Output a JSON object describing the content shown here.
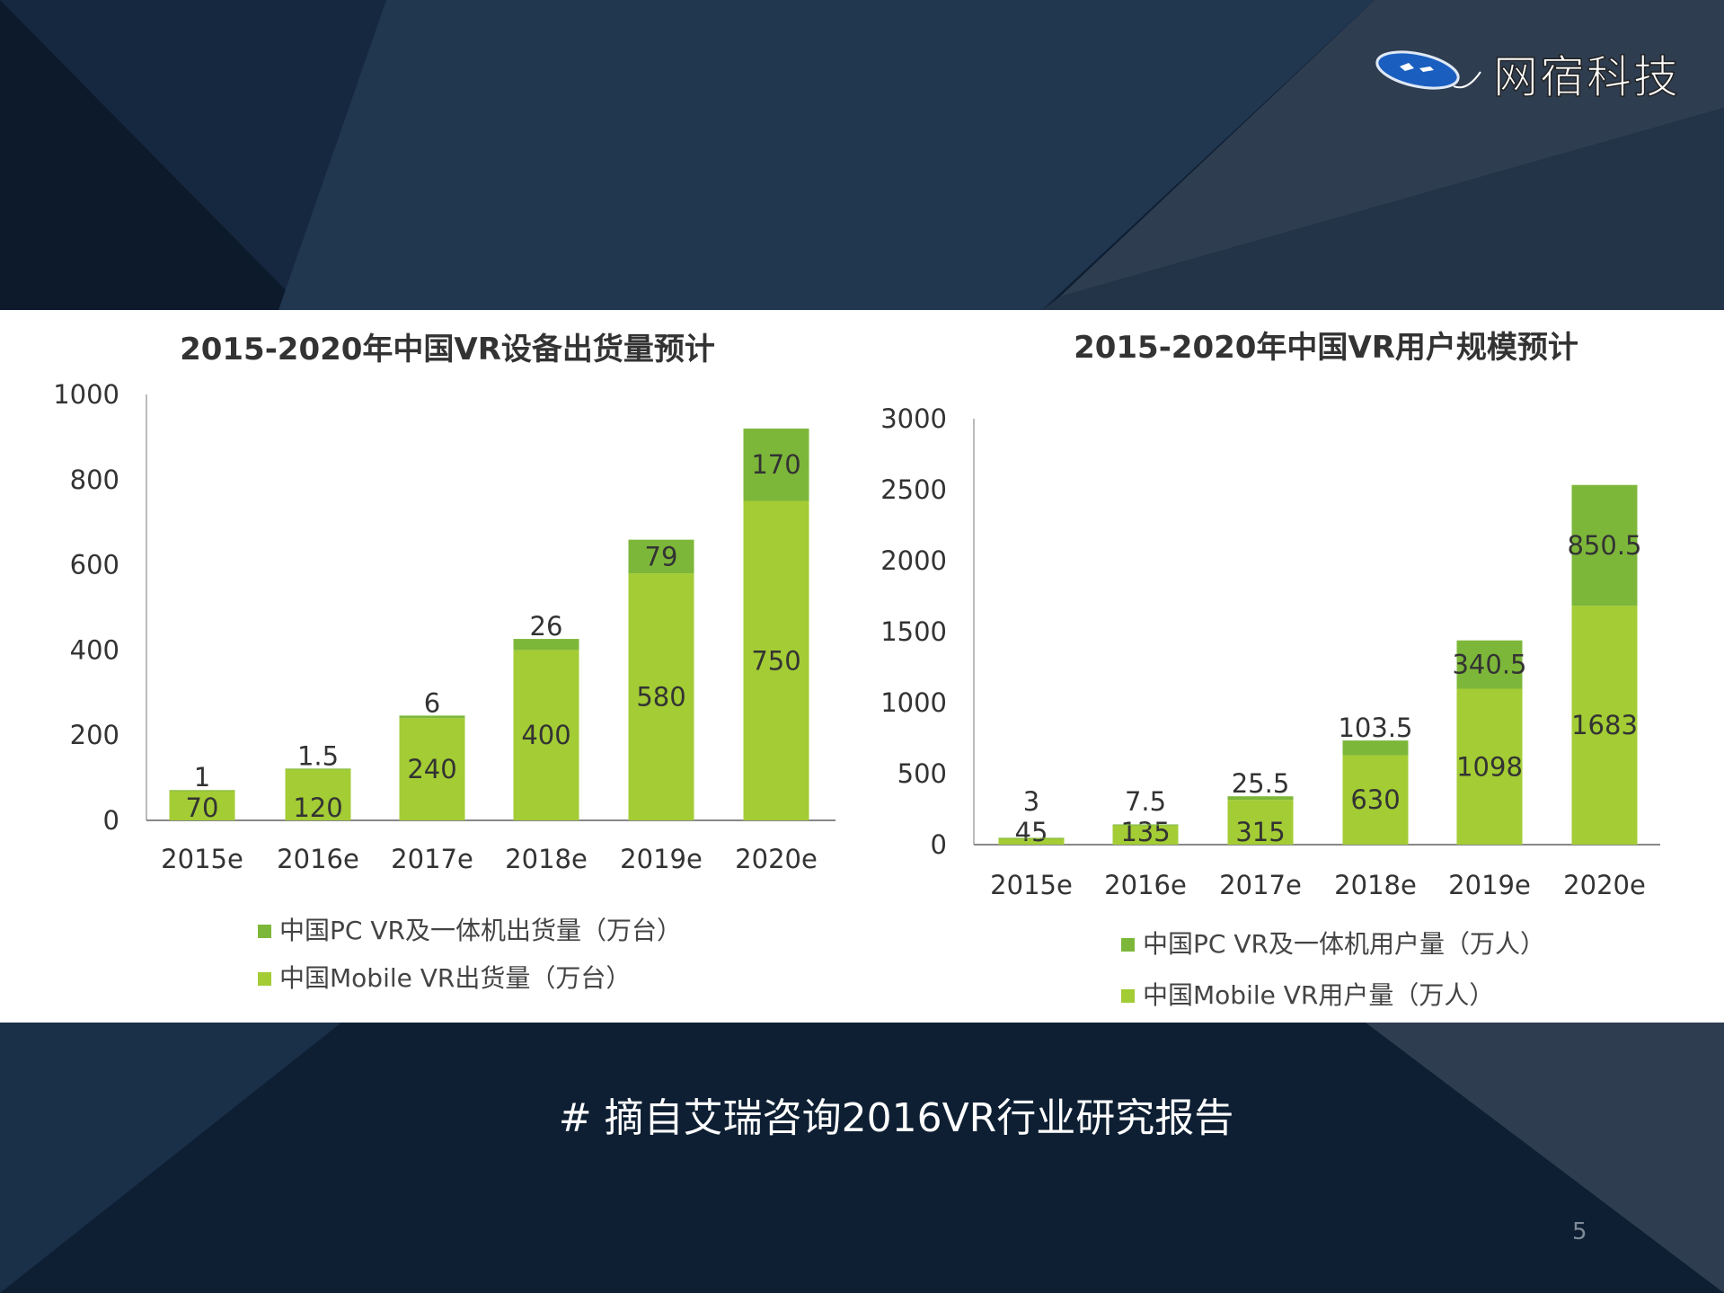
{
  "logo": {
    "text": "网宿科技"
  },
  "footer_note": "# 摘自艾瑞咨询2016VR行业研究报告",
  "page_number": "5",
  "colors": {
    "pc": "#7db73a",
    "mobile": "#a3cc35",
    "background": "#0e1f33"
  },
  "chart_data": [
    {
      "type": "bar",
      "stacked": true,
      "title": "2015-2020年中国VR设备出货量预计",
      "categories": [
        "2015e",
        "2016e",
        "2017e",
        "2018e",
        "2019e",
        "2020e"
      ],
      "ylim": [
        0,
        1000
      ],
      "yticks": [
        "0",
        "200",
        "400",
        "600",
        "800",
        "1000"
      ],
      "grid": false,
      "legend_position": "bottom",
      "series": [
        {
          "name": "中国Mobile VR出货量（万台）",
          "values": [
            70,
            120,
            240,
            400,
            580,
            750
          ],
          "labels": [
            "70",
            "120",
            "240",
            "400",
            "580",
            "750"
          ]
        },
        {
          "name": "中国PC VR及一体机出货量（万台）",
          "values": [
            1,
            1.5,
            6,
            26,
            79,
            170
          ],
          "labels": [
            "1",
            "1.5",
            "6",
            "26",
            "79",
            "170"
          ]
        }
      ]
    },
    {
      "type": "bar",
      "stacked": true,
      "title": "2015-2020年中国VR用户规模预计",
      "categories": [
        "2015e",
        "2016e",
        "2017e",
        "2018e",
        "2019e",
        "2020e"
      ],
      "ylim": [
        0,
        3000
      ],
      "yticks": [
        "0",
        "500",
        "1000",
        "1500",
        "2000",
        "2500",
        "3000"
      ],
      "grid": false,
      "legend_position": "bottom",
      "series": [
        {
          "name": "中国Mobile VR用户量（万人）",
          "values": [
            45,
            135,
            315,
            630,
            1098,
            1683
          ],
          "labels": [
            "45",
            "135",
            "315",
            "630",
            "1098",
            "1683"
          ]
        },
        {
          "name": "中国PC VR及一体机用户量（万人）",
          "values": [
            3,
            7.5,
            25.5,
            103.5,
            340.5,
            850.5
          ],
          "labels": [
            "3",
            "7.5",
            "25.5",
            "103.5",
            "340.5",
            "850.5"
          ]
        }
      ]
    }
  ]
}
